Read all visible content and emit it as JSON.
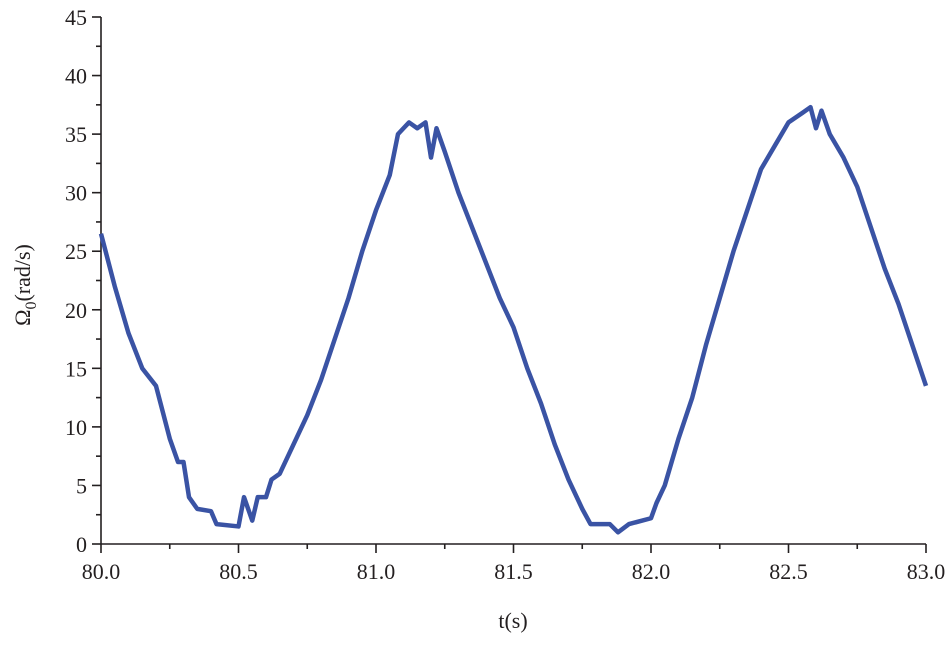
{
  "chart_data": {
    "type": "line",
    "xlabel": "t(s)",
    "ylabel_symbol": "Ω",
    "ylabel_subscript": "0",
    "ylabel_unit": "(rad/s)",
    "xlim": [
      80,
      83
    ],
    "ylim": [
      0,
      45
    ],
    "xticks": [
      {
        "value": 80,
        "label": "80.0"
      },
      80.5,
      {
        "value": 81,
        "label": "81.0"
      },
      81.5,
      {
        "value": 82,
        "label": "82.0"
      },
      82.5,
      {
        "value": 83,
        "label": "83.0"
      }
    ],
    "xminorticks": [
      80.25,
      80.75,
      81.25,
      81.75,
      82.25,
      82.75
    ],
    "yticks": [
      0,
      5,
      10,
      15,
      20,
      25,
      30,
      35,
      40,
      45
    ],
    "yminorticks": [
      2.5,
      7.5,
      12.5,
      17.5,
      22.5,
      27.5,
      32.5,
      37.5,
      42.5
    ],
    "grid": false,
    "series": [
      {
        "color": "#3a53a4",
        "x": [
          80.0,
          80.05,
          80.1,
          80.15,
          80.2,
          80.25,
          80.28,
          80.3,
          80.32,
          80.35,
          80.4,
          80.42,
          80.5,
          80.52,
          80.55,
          80.57,
          80.6,
          80.62,
          80.65,
          80.7,
          80.75,
          80.8,
          80.85,
          80.9,
          80.95,
          81.0,
          81.05,
          81.08,
          81.1,
          81.12,
          81.15,
          81.18,
          81.2,
          81.22,
          81.25,
          81.3,
          81.35,
          81.4,
          81.45,
          81.5,
          81.55,
          81.6,
          81.65,
          81.7,
          81.75,
          81.78,
          81.85,
          81.88,
          81.92,
          82.0,
          82.02,
          82.05,
          82.1,
          82.15,
          82.2,
          82.25,
          82.3,
          82.35,
          82.4,
          82.45,
          82.5,
          82.55,
          82.58,
          82.6,
          82.62,
          82.65,
          82.7,
          82.75,
          82.8,
          82.85,
          82.9,
          82.95,
          83.0
        ],
        "values": [
          26.5,
          22,
          18,
          15,
          13.5,
          9,
          7,
          7,
          4,
          3,
          2.8,
          1.7,
          1.5,
          4,
          2,
          4,
          4,
          5.5,
          6,
          8.5,
          11,
          14,
          17.5,
          21,
          25,
          28.5,
          31.5,
          35,
          35.5,
          36,
          35.5,
          36,
          33,
          35.5,
          33.5,
          30,
          27,
          24,
          21,
          18.5,
          15,
          12,
          8.5,
          5.5,
          3,
          1.7,
          1.7,
          1,
          1.7,
          2.2,
          3.5,
          5,
          9,
          12.5,
          17,
          21,
          25,
          28.5,
          32,
          34,
          36,
          36.8,
          37.3,
          35.5,
          37,
          35,
          33,
          30.5,
          27,
          23.5,
          20.5,
          17,
          13.5
        ]
      }
    ]
  }
}
